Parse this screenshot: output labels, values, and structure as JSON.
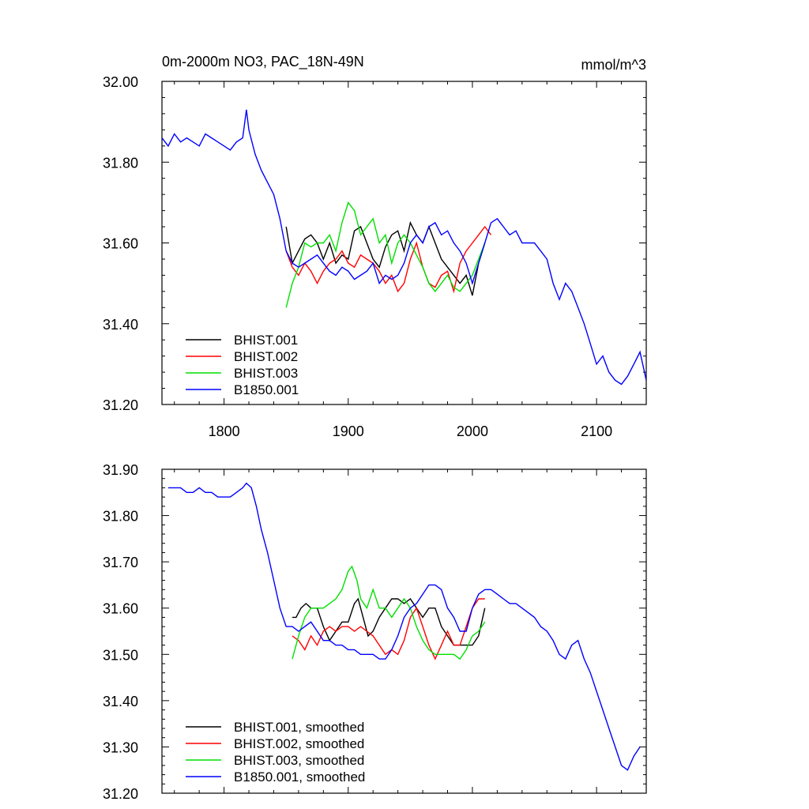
{
  "chart_data": [
    {
      "type": "line",
      "title": "0m-2000m NO3, PAC_18N-49N",
      "units": "mmol/m^3",
      "xlim": [
        1750,
        2140
      ],
      "ylim": [
        31.2,
        32.0
      ],
      "xticks": [
        1800,
        1900,
        2000,
        2100
      ],
      "xtick_labels": [
        "1800",
        "1900",
        "2000",
        "2100"
      ],
      "yticks": [
        31.2,
        31.4,
        31.6,
        31.8,
        32.0
      ],
      "ytick_labels": [
        "31.20",
        "31.40",
        "31.60",
        "31.80",
        "32.00"
      ],
      "legend_position": "bottom-left",
      "series": [
        {
          "name": "BHIST.001",
          "color": "#000000",
          "x": [
            1850,
            1855,
            1860,
            1865,
            1870,
            1875,
            1880,
            1885,
            1890,
            1895,
            1900,
            1905,
            1910,
            1915,
            1920,
            1925,
            1930,
            1935,
            1940,
            1945,
            1950,
            1955,
            1960,
            1965,
            1970,
            1975,
            1980,
            1985,
            1990,
            1995,
            2000,
            2005,
            2010
          ],
          "values": [
            31.64,
            31.55,
            31.58,
            31.61,
            31.62,
            31.6,
            31.56,
            31.6,
            31.55,
            31.57,
            31.56,
            31.63,
            31.64,
            31.6,
            31.56,
            31.54,
            31.59,
            31.62,
            31.63,
            31.58,
            31.65,
            31.62,
            31.6,
            31.64,
            31.6,
            31.56,
            31.54,
            31.52,
            31.5,
            31.52,
            31.47,
            31.55,
            31.6
          ]
        },
        {
          "name": "BHIST.002",
          "color": "#ff0000",
          "x": [
            1850,
            1855,
            1860,
            1865,
            1870,
            1875,
            1880,
            1885,
            1890,
            1895,
            1900,
            1905,
            1910,
            1915,
            1920,
            1925,
            1930,
            1935,
            1940,
            1945,
            1950,
            1955,
            1960,
            1965,
            1970,
            1975,
            1980,
            1985,
            1990,
            1995,
            2000,
            2005,
            2010,
            2015
          ],
          "values": [
            31.58,
            31.54,
            31.52,
            31.55,
            31.53,
            31.5,
            31.53,
            31.55,
            31.56,
            31.58,
            31.55,
            31.54,
            31.57,
            31.56,
            31.55,
            31.53,
            31.5,
            31.52,
            31.48,
            31.5,
            31.56,
            31.6,
            31.54,
            31.5,
            31.49,
            31.52,
            31.53,
            31.48,
            31.55,
            31.58,
            31.6,
            31.62,
            31.64,
            31.62
          ]
        },
        {
          "name": "BHIST.003",
          "color": "#00e000",
          "x": [
            1850,
            1855,
            1860,
            1865,
            1870,
            1875,
            1880,
            1885,
            1890,
            1895,
            1900,
            1905,
            1910,
            1915,
            1920,
            1925,
            1930,
            1935,
            1940,
            1945,
            1950,
            1955,
            1960,
            1965,
            1970,
            1975,
            1980,
            1985,
            1990,
            1995,
            2000,
            2005,
            2010
          ],
          "values": [
            31.44,
            31.5,
            31.54,
            31.6,
            31.59,
            31.6,
            31.6,
            31.62,
            31.58,
            31.65,
            31.7,
            31.68,
            31.62,
            31.64,
            31.66,
            31.6,
            31.62,
            31.55,
            31.6,
            31.62,
            31.6,
            31.57,
            31.54,
            31.5,
            31.48,
            31.5,
            31.52,
            31.49,
            31.48,
            31.5,
            31.52,
            31.56,
            31.6
          ]
        },
        {
          "name": "B1850.001",
          "color": "#0000ff",
          "x": [
            1750,
            1755,
            1760,
            1765,
            1770,
            1775,
            1780,
            1785,
            1790,
            1795,
            1800,
            1805,
            1810,
            1815,
            1818,
            1820,
            1825,
            1830,
            1835,
            1840,
            1845,
            1850,
            1855,
            1860,
            1865,
            1870,
            1875,
            1880,
            1885,
            1890,
            1895,
            1900,
            1905,
            1910,
            1915,
            1920,
            1925,
            1930,
            1935,
            1940,
            1945,
            1950,
            1955,
            1960,
            1965,
            1970,
            1975,
            1980,
            1985,
            1990,
            1995,
            2000,
            2005,
            2010,
            2015,
            2020,
            2025,
            2030,
            2035,
            2040,
            2045,
            2050,
            2055,
            2060,
            2065,
            2070,
            2075,
            2080,
            2085,
            2090,
            2095,
            2100,
            2105,
            2110,
            2115,
            2120,
            2125,
            2130,
            2135,
            2140
          ],
          "values": [
            31.86,
            31.84,
            31.87,
            31.85,
            31.86,
            31.85,
            31.84,
            31.87,
            31.86,
            31.85,
            31.84,
            31.83,
            31.85,
            31.86,
            31.93,
            31.88,
            31.82,
            31.78,
            31.75,
            31.72,
            31.66,
            31.58,
            31.55,
            31.54,
            31.55,
            31.56,
            31.57,
            31.55,
            31.53,
            31.52,
            31.54,
            31.53,
            31.51,
            31.52,
            31.53,
            31.55,
            31.5,
            31.52,
            31.51,
            31.52,
            31.55,
            31.6,
            31.62,
            31.6,
            31.64,
            31.65,
            31.62,
            31.63,
            31.6,
            31.58,
            31.55,
            31.5,
            31.55,
            31.6,
            31.65,
            31.66,
            31.64,
            31.62,
            31.63,
            31.6,
            31.6,
            31.6,
            31.58,
            31.56,
            31.5,
            31.46,
            31.5,
            31.48,
            31.44,
            31.4,
            31.35,
            31.3,
            31.32,
            31.28,
            31.26,
            31.25,
            31.27,
            31.3,
            31.33,
            31.26
          ]
        }
      ]
    },
    {
      "type": "line",
      "title": "",
      "xlim": [
        1750,
        2140
      ],
      "ylim": [
        31.2,
        31.9
      ],
      "xticks": [
        1800,
        1900,
        2000,
        2100
      ],
      "yticks": [
        31.2,
        31.3,
        31.4,
        31.5,
        31.6,
        31.7,
        31.8,
        31.9
      ],
      "ytick_labels": [
        "31.20",
        "31.30",
        "31.40",
        "31.50",
        "31.60",
        "31.70",
        "31.80",
        "31.90"
      ],
      "legend_position": "bottom-left",
      "series": [
        {
          "name": "BHIST.001, smoothed",
          "color": "#000000",
          "x": [
            1855,
            1858,
            1862,
            1866,
            1870,
            1875,
            1880,
            1885,
            1890,
            1895,
            1900,
            1905,
            1908,
            1912,
            1916,
            1920,
            1925,
            1930,
            1935,
            1940,
            1945,
            1950,
            1955,
            1960,
            1965,
            1970,
            1975,
            1980,
            1985,
            1990,
            1995,
            2000,
            2005,
            2010
          ],
          "values": [
            31.58,
            31.58,
            31.6,
            31.61,
            31.6,
            31.6,
            31.56,
            31.53,
            31.55,
            31.57,
            31.57,
            31.61,
            31.62,
            31.58,
            31.54,
            31.55,
            31.58,
            31.6,
            31.62,
            31.62,
            31.61,
            31.62,
            31.6,
            31.58,
            31.6,
            31.6,
            31.56,
            31.54,
            31.52,
            31.52,
            31.52,
            31.52,
            31.54,
            31.6
          ]
        },
        {
          "name": "BHIST.002, smoothed",
          "color": "#ff0000",
          "x": [
            1855,
            1860,
            1865,
            1870,
            1875,
            1880,
            1885,
            1890,
            1895,
            1900,
            1905,
            1910,
            1915,
            1920,
            1925,
            1930,
            1935,
            1940,
            1945,
            1950,
            1955,
            1960,
            1965,
            1970,
            1975,
            1980,
            1985,
            1990,
            1995,
            2000,
            2005,
            2010
          ],
          "values": [
            31.54,
            31.53,
            31.51,
            31.54,
            31.52,
            31.55,
            31.56,
            31.55,
            31.56,
            31.56,
            31.55,
            31.56,
            31.55,
            31.54,
            31.52,
            31.5,
            31.51,
            31.5,
            31.53,
            31.58,
            31.6,
            31.56,
            31.52,
            31.49,
            31.52,
            31.55,
            31.52,
            31.52,
            31.56,
            31.6,
            31.62,
            31.62
          ]
        },
        {
          "name": "BHIST.003, smoothed",
          "color": "#00e000",
          "x": [
            1855,
            1860,
            1865,
            1870,
            1875,
            1880,
            1885,
            1890,
            1895,
            1900,
            1903,
            1907,
            1910,
            1915,
            1920,
            1925,
            1930,
            1935,
            1940,
            1945,
            1950,
            1955,
            1960,
            1965,
            1970,
            1975,
            1980,
            1985,
            1990,
            1995,
            2000,
            2005,
            2010
          ],
          "values": [
            31.49,
            31.54,
            31.58,
            31.6,
            31.6,
            31.6,
            31.61,
            31.62,
            31.64,
            31.68,
            31.69,
            31.66,
            31.62,
            31.6,
            31.64,
            31.6,
            31.6,
            31.58,
            31.6,
            31.62,
            31.6,
            31.56,
            31.53,
            31.51,
            31.5,
            31.5,
            31.5,
            31.5,
            31.49,
            31.51,
            31.54,
            31.55,
            31.57
          ]
        },
        {
          "name": "B1850.001, smoothed",
          "color": "#0000ff",
          "x": [
            1755,
            1760,
            1765,
            1770,
            1775,
            1780,
            1785,
            1790,
            1795,
            1800,
            1805,
            1810,
            1815,
            1818,
            1822,
            1826,
            1830,
            1835,
            1840,
            1845,
            1850,
            1855,
            1860,
            1865,
            1870,
            1875,
            1880,
            1885,
            1890,
            1895,
            1900,
            1905,
            1910,
            1915,
            1920,
            1925,
            1930,
            1935,
            1940,
            1945,
            1950,
            1955,
            1960,
            1965,
            1970,
            1975,
            1980,
            1985,
            1990,
            1995,
            2000,
            2005,
            2010,
            2015,
            2020,
            2025,
            2030,
            2035,
            2040,
            2045,
            2050,
            2055,
            2060,
            2065,
            2070,
            2075,
            2080,
            2085,
            2090,
            2095,
            2100,
            2105,
            2110,
            2115,
            2120,
            2125,
            2130,
            2135
          ],
          "values": [
            31.86,
            31.86,
            31.86,
            31.85,
            31.85,
            31.86,
            31.85,
            31.85,
            31.84,
            31.84,
            31.84,
            31.85,
            31.86,
            31.87,
            31.86,
            31.82,
            31.77,
            31.72,
            31.66,
            31.6,
            31.56,
            31.56,
            31.55,
            31.56,
            31.57,
            31.55,
            31.53,
            31.53,
            31.52,
            31.52,
            31.51,
            31.51,
            31.5,
            31.5,
            31.5,
            31.49,
            31.49,
            31.51,
            31.54,
            31.58,
            31.6,
            31.61,
            31.63,
            31.65,
            31.65,
            31.64,
            31.6,
            31.58,
            31.55,
            31.55,
            31.6,
            31.63,
            31.64,
            31.64,
            31.63,
            31.62,
            31.61,
            31.61,
            31.6,
            31.59,
            31.58,
            31.56,
            31.55,
            31.53,
            31.5,
            31.49,
            31.52,
            31.53,
            31.49,
            31.46,
            31.42,
            31.38,
            31.34,
            31.3,
            31.26,
            31.25,
            31.28,
            31.3
          ]
        }
      ]
    }
  ]
}
